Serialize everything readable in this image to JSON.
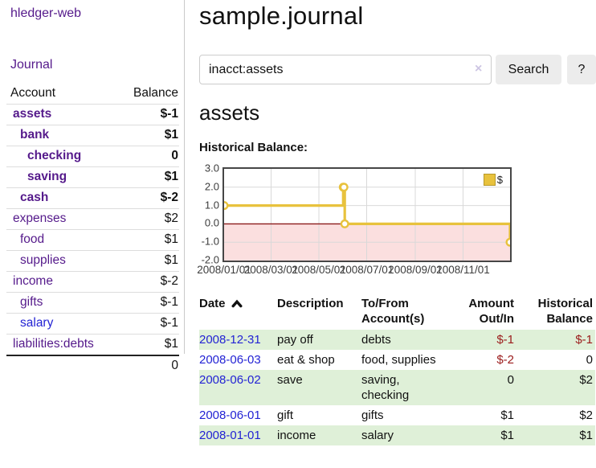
{
  "sidebar": {
    "app_title": "hledger-web",
    "journal_link": "Journal",
    "table": {
      "account_header": "Account",
      "balance_header": "Balance",
      "rows": [
        {
          "account": "assets",
          "balance": "$-1",
          "indent": 1,
          "bold": true,
          "neg": "hard"
        },
        {
          "account": "bank",
          "balance": "$1",
          "indent": 2,
          "bold": true,
          "neg": "none"
        },
        {
          "account": "checking",
          "balance": "0",
          "indent": 3,
          "bold": true,
          "neg": "none"
        },
        {
          "account": "saving",
          "balance": "$1",
          "indent": 3,
          "bold": true,
          "neg": "none"
        },
        {
          "account": "cash",
          "balance": "$-2",
          "indent": 2,
          "bold": true,
          "neg": "hard"
        },
        {
          "account": "expenses",
          "balance": "$2",
          "indent": 1,
          "bold": false,
          "neg": "none"
        },
        {
          "account": "food",
          "balance": "$1",
          "indent": 2,
          "bold": false,
          "neg": "none"
        },
        {
          "account": "supplies",
          "balance": "$1",
          "indent": 2,
          "bold": false,
          "neg": "none"
        },
        {
          "account": "income",
          "balance": "$-2",
          "indent": 1,
          "bold": false,
          "neg": "soft"
        },
        {
          "account": "gifts",
          "balance": "$-1",
          "indent": 2,
          "bold": false,
          "neg": "soft"
        },
        {
          "account": "salary",
          "balance": "$-1",
          "indent": 2,
          "bold": false,
          "neg": "soft",
          "link_color": "blue"
        },
        {
          "account": "liabilities:debts",
          "balance": "$1",
          "indent": 1,
          "bold": false,
          "neg": "none"
        }
      ],
      "total": "0"
    }
  },
  "main": {
    "title": "sample.journal",
    "search": {
      "value": "inacct:assets",
      "clear_icon": "×",
      "search_button": "Search",
      "help_button": "?"
    },
    "account_heading": "assets",
    "chart_label": "Historical Balance:"
  },
  "chart_data": {
    "type": "line",
    "step": true,
    "title": "Historical Balance",
    "legend": {
      "label": "$",
      "position": "top-right"
    },
    "ylim": [
      -2,
      3
    ],
    "y_ticks": [
      "3.0",
      "2.0",
      "1.0",
      "0.0",
      "-1.0",
      "-2.0"
    ],
    "x_total_days": 365,
    "x_ticks": [
      {
        "label": "2008/01/01",
        "day": 0
      },
      {
        "label": "2008/03/01",
        "day": 60
      },
      {
        "label": "2008/05/01",
        "day": 121
      },
      {
        "label": "2008/07/01",
        "day": 182
      },
      {
        "label": "2008/09/01",
        "day": 244
      },
      {
        "label": "2008/11/01",
        "day": 305
      }
    ],
    "series": [
      {
        "name": "$",
        "points": [
          {
            "date": "2008-01-01",
            "day": 0,
            "value": 1
          },
          {
            "date": "2008-06-01",
            "day": 152,
            "value": 2
          },
          {
            "date": "2008-06-02",
            "day": 153,
            "value": 2
          },
          {
            "date": "2008-06-03",
            "day": 154,
            "value": 0
          },
          {
            "date": "2008-12-31",
            "day": 365,
            "value": -1
          }
        ]
      }
    ],
    "colors": {
      "line": "#e8c23d",
      "marker_fill": "#ffffff",
      "negative_region_fill": "#fbdfdf",
      "zero_line": "#8b1a1a",
      "grid": "#d9d9d9",
      "border": "#464646"
    }
  },
  "register": {
    "headers": [
      {
        "line1": "Date",
        "line2": "",
        "align": "left",
        "sorted": true
      },
      {
        "line1": "Description",
        "line2": "",
        "align": "left"
      },
      {
        "line1": "To/From",
        "line2": "Account(s)",
        "align": "left"
      },
      {
        "line1": "Amount",
        "line2": "Out/In",
        "align": "right"
      },
      {
        "line1": "Historical",
        "line2": "Balance",
        "align": "right"
      }
    ],
    "rows": [
      {
        "date": "2008-12-31",
        "description": "pay off",
        "accounts": "debts",
        "amount": "$-1",
        "amount_neg": true,
        "balance": "$-1",
        "balance_neg": true,
        "stripe": true
      },
      {
        "date": "2008-06-03",
        "description": "eat & shop",
        "accounts": "food, supplies",
        "amount": "$-2",
        "amount_neg": true,
        "balance": "0",
        "balance_neg": false,
        "stripe": false
      },
      {
        "date": "2008-06-02",
        "description": "save",
        "accounts": "saving, checking",
        "amount": "0",
        "amount_neg": false,
        "balance": "$2",
        "balance_neg": false,
        "stripe": true
      },
      {
        "date": "2008-06-01",
        "description": "gift",
        "accounts": "gifts",
        "amount": "$1",
        "amount_neg": false,
        "balance": "$2",
        "balance_neg": false,
        "stripe": false
      },
      {
        "date": "2008-01-01",
        "description": "income",
        "accounts": "salary",
        "amount": "$1",
        "amount_neg": false,
        "balance": "$1",
        "balance_neg": false,
        "stripe": true
      }
    ]
  },
  "colors": {
    "link_purple": "#551a8b",
    "link_blue": "#2323d4",
    "negative_bold": "#9b1c1c",
    "negative_soft": "#bf7676",
    "stripe_green": "#dff0d8"
  }
}
